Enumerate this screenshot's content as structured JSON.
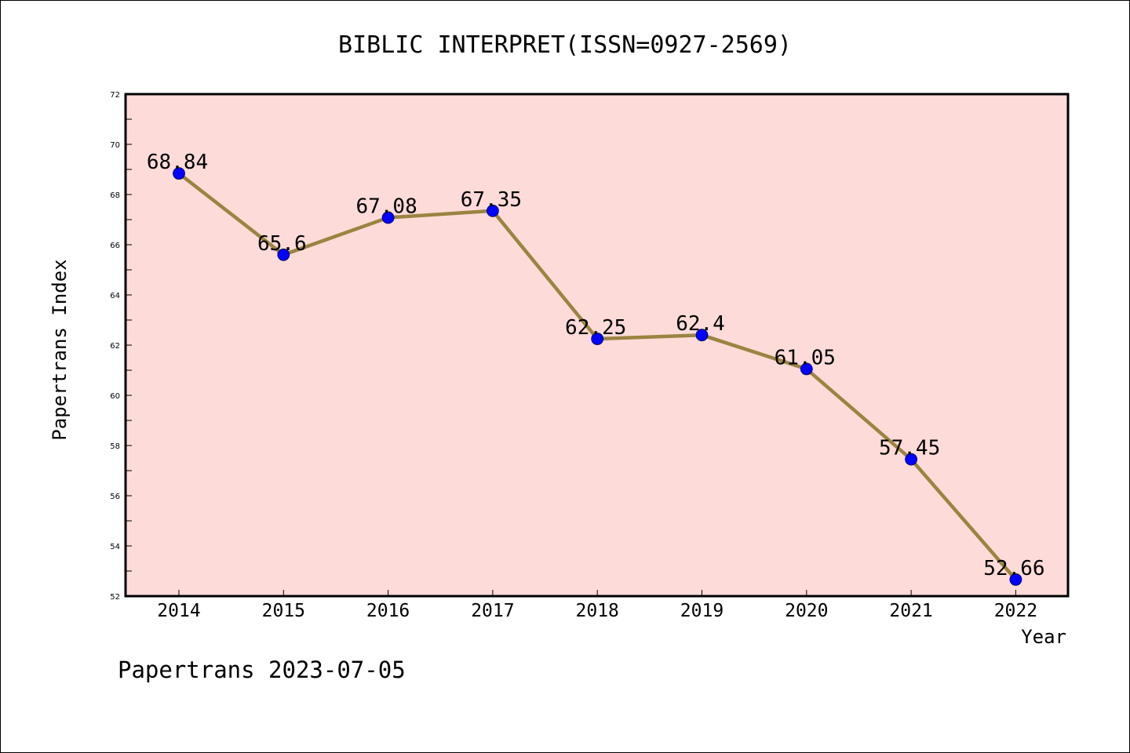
{
  "chart_data": {
    "type": "line",
    "title": "BIBLIC INTERPRET(ISSN=0927-2569)",
    "xlabel": "Year",
    "ylabel": "Papertrans Index",
    "categories": [
      "2014",
      "2015",
      "2016",
      "2017",
      "2018",
      "2019",
      "2020",
      "2021",
      "2022"
    ],
    "values": [
      68.84,
      65.6,
      67.08,
      67.35,
      62.25,
      62.4,
      61.05,
      57.45,
      52.66
    ],
    "data_labels": [
      "68.84",
      "65.6",
      "67.08",
      "67.35",
      "62.25",
      "62.4",
      "61.05",
      "57.45",
      "52.66"
    ],
    "ylim": [
      52,
      72
    ],
    "yticks": [
      52,
      54,
      56,
      58,
      60,
      62,
      64,
      66,
      68,
      70,
      72
    ],
    "grid": false,
    "colors": {
      "plot_background": "#fddbd8",
      "line": "#9a8440",
      "marker": "#0000ff"
    }
  },
  "footer": {
    "text": "Papertrans 2023-07-05"
  }
}
